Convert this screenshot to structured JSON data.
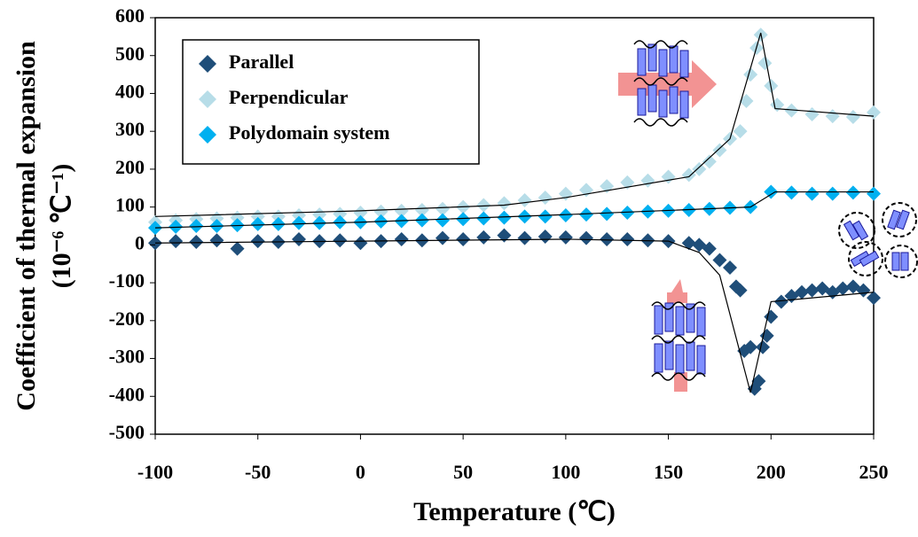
{
  "chart_data": {
    "type": "scatter",
    "xlabel": "Temperature (℃)",
    "ylabel": [
      "Coefficient of thermal expansion",
      "(10⁻⁶ ℃⁻¹)"
    ],
    "xlim": [
      -100,
      250
    ],
    "xticks": [
      -100,
      -50,
      0,
      50,
      100,
      150,
      200,
      250
    ],
    "ylim": [
      -500,
      600
    ],
    "yticks": [
      -500,
      -400,
      -300,
      -200,
      -100,
      0,
      100,
      200,
      300,
      400,
      500,
      600
    ],
    "legend": "upper left",
    "series": [
      {
        "name": "Perpendicular",
        "color": "#b7dde8",
        "x": [
          -100,
          -90,
          -80,
          -70,
          -60,
          -50,
          -40,
          -30,
          -20,
          -10,
          0,
          10,
          20,
          30,
          40,
          50,
          60,
          70,
          80,
          90,
          100,
          110,
          120,
          130,
          140,
          150,
          160,
          165,
          170,
          175,
          180,
          185,
          188,
          190,
          193,
          195,
          197,
          200,
          203,
          210,
          220,
          230,
          240,
          250
        ],
        "values": [
          60,
          65,
          68,
          70,
          72,
          75,
          75,
          78,
          80,
          82,
          85,
          88,
          90,
          92,
          95,
          100,
          105,
          110,
          118,
          125,
          135,
          145,
          155,
          165,
          170,
          180,
          185,
          200,
          220,
          250,
          280,
          300,
          380,
          450,
          520,
          555,
          480,
          420,
          370,
          355,
          345,
          340,
          338,
          350
        ]
      },
      {
        "name": "Polydomain system",
        "color": "#00b0f0",
        "x": [
          -100,
          -90,
          -80,
          -70,
          -60,
          -50,
          -40,
          -30,
          -20,
          -10,
          0,
          10,
          20,
          30,
          40,
          50,
          60,
          70,
          80,
          90,
          100,
          110,
          120,
          130,
          140,
          150,
          160,
          170,
          180,
          190,
          200,
          210,
          220,
          230,
          240,
          250
        ],
        "values": [
          45,
          48,
          50,
          50,
          52,
          55,
          55,
          58,
          58,
          60,
          60,
          62,
          63,
          65,
          65,
          68,
          70,
          72,
          75,
          75,
          78,
          80,
          82,
          85,
          88,
          90,
          92,
          95,
          98,
          100,
          140,
          138,
          135,
          135,
          138,
          135
        ]
      },
      {
        "name": "Parallel",
        "color": "#1f4e79",
        "x": [
          -100,
          -90,
          -80,
          -70,
          -60,
          -50,
          -40,
          -30,
          -20,
          -10,
          0,
          10,
          20,
          30,
          40,
          50,
          60,
          70,
          80,
          90,
          100,
          110,
          120,
          130,
          140,
          150,
          160,
          165,
          170,
          175,
          180,
          183,
          185,
          187,
          190,
          192,
          194,
          196,
          198,
          200,
          205,
          210,
          215,
          220,
          225,
          230,
          235,
          240,
          245,
          250
        ],
        "values": [
          5,
          10,
          8,
          12,
          -10,
          10,
          8,
          15,
          10,
          12,
          5,
          10,
          15,
          12,
          18,
          15,
          20,
          25,
          18,
          22,
          20,
          18,
          15,
          15,
          12,
          10,
          5,
          0,
          -10,
          -40,
          -60,
          -110,
          -120,
          -280,
          -270,
          -380,
          -360,
          -270,
          -240,
          -190,
          -150,
          -135,
          -125,
          -120,
          -115,
          -125,
          -115,
          -110,
          -120,
          -140
        ]
      }
    ],
    "legend_order": [
      2,
      0,
      1
    ],
    "fit_lines": [
      {
        "color": "#000000",
        "x": [
          -100,
          0,
          100,
          150,
          165,
          175,
          190,
          200,
          250
        ],
        "values": [
          5,
          10,
          15,
          10,
          -20,
          -80,
          -390,
          -150,
          -125
        ]
      },
      {
        "color": "#000000",
        "x": [
          -100,
          0,
          70,
          100,
          160,
          180,
          195,
          202,
          250
        ],
        "values": [
          75,
          90,
          105,
          125,
          180,
          280,
          560,
          360,
          340
        ]
      },
      {
        "color": "#000000",
        "x": [
          -100,
          0,
          100,
          190,
          202,
          250
        ],
        "values": [
          45,
          60,
          80,
          100,
          140,
          140
        ]
      }
    ]
  }
}
